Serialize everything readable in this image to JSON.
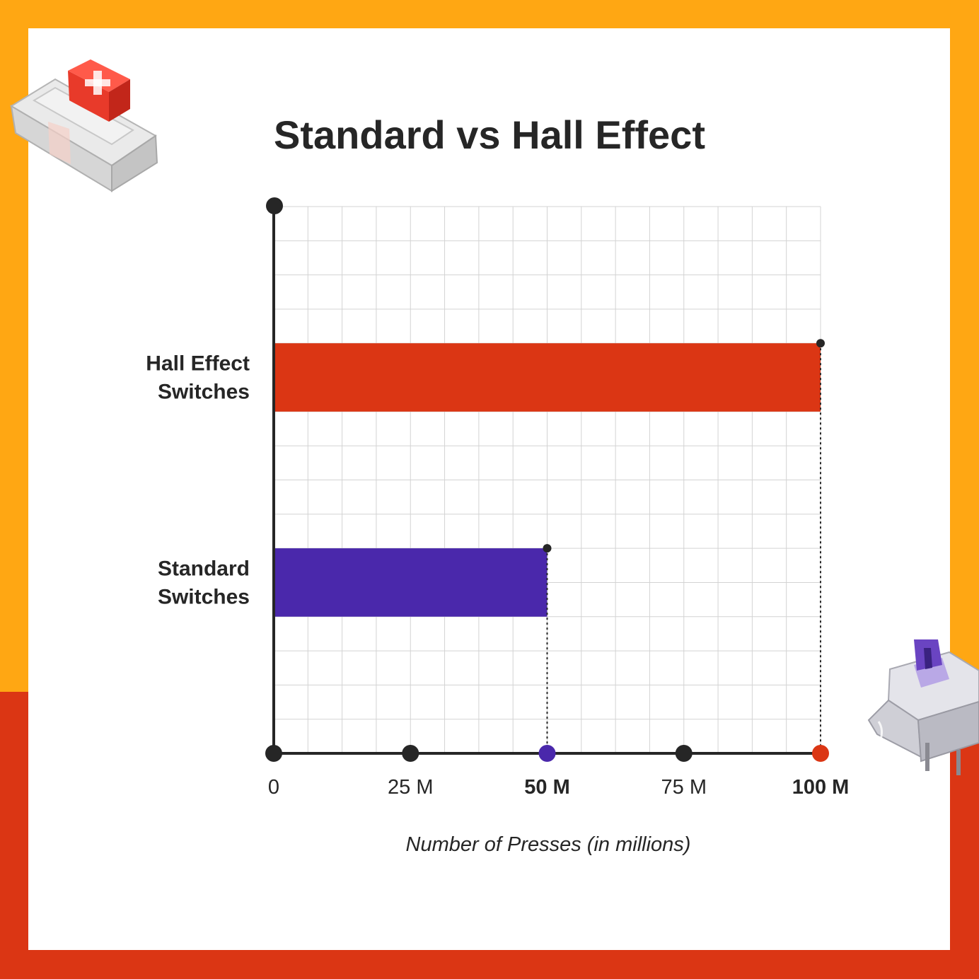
{
  "colors": {
    "frame_top": "#FFA713",
    "frame_bottom": "#DB3614",
    "panel": "#FFFFFF",
    "ink": "#262626",
    "grid": "#D3D3D3"
  },
  "chart_data": {
    "type": "bar",
    "orientation": "horizontal",
    "title": "Standard vs Hall Effect",
    "xlabel": "Number of Presses (in millions)",
    "ylabel": "",
    "xlim": [
      0,
      100
    ],
    "grid": true,
    "legend": "none",
    "categories": [
      "Hall Effect Switches",
      "Standard Switches"
    ],
    "category_lines": [
      [
        "Hall Effect",
        "Switches"
      ],
      [
        "Standard",
        "Switches"
      ]
    ],
    "values": [
      100,
      50
    ],
    "bar_colors": [
      "#DB3614",
      "#4A28AB"
    ],
    "xticks": [
      {
        "value": 0,
        "label": "0",
        "marker_color": "#262626",
        "emphasis": false
      },
      {
        "value": 25,
        "label": "25 M",
        "marker_color": "#262626",
        "emphasis": false
      },
      {
        "value": 50,
        "label": "50 M",
        "marker_color": "#4A28AB",
        "emphasis": true
      },
      {
        "value": 75,
        "label": "75 M",
        "marker_color": "#262626",
        "emphasis": false
      },
      {
        "value": 100,
        "label": "100 M",
        "marker_color": "#DB3614",
        "emphasis": true
      }
    ]
  },
  "decorations": {
    "top_left": "red-key-switch-icon",
    "bottom_right": "purple-key-switch-icon"
  }
}
